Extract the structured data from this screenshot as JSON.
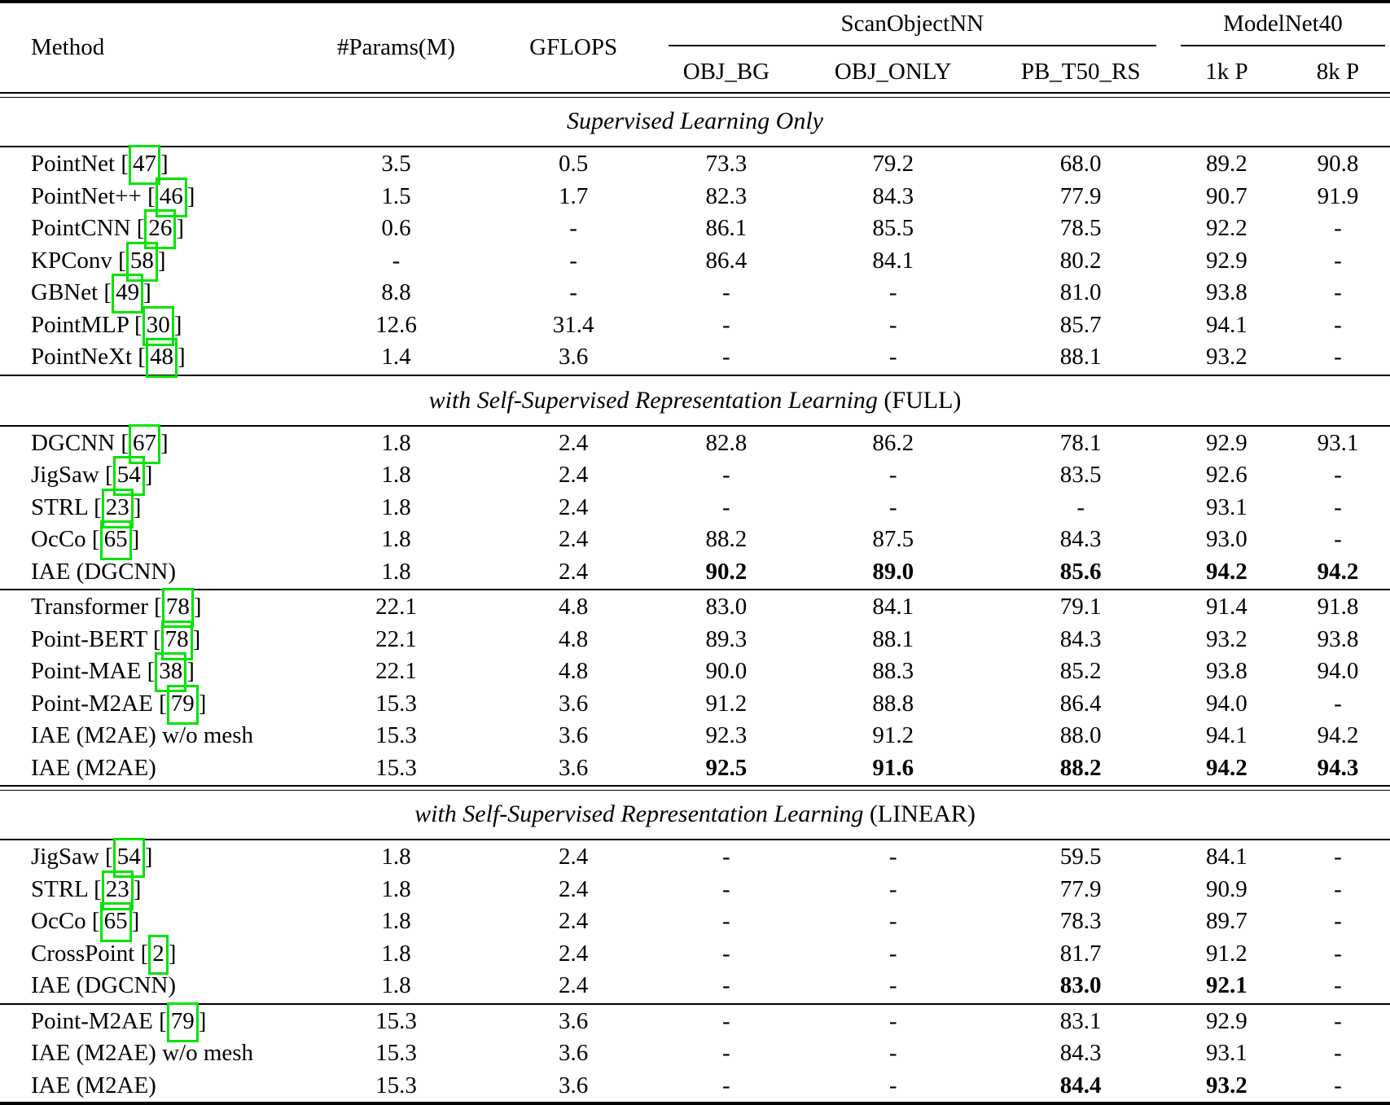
{
  "table": {
    "citation_box_color": "#00e400",
    "columns": [
      "Method",
      "#Params(M)",
      "GFLOPS",
      "OBJ_BG",
      "OBJ_ONLY",
      "PB_T50_RS",
      "1k P",
      "8k P"
    ],
    "groups": [
      {
        "label": "ScanObjectNN",
        "span": 3
      },
      {
        "label": "ModelNet40",
        "span": 2
      }
    ],
    "sections": [
      {
        "title": "Supervised Learning Only",
        "suffix": "",
        "rule_before": "double",
        "blocks": [
          {
            "rows": [
              {
                "method": "PointNet",
                "cite": "47",
                "cells": [
                  "3.5",
                  "0.5",
                  "73.3",
                  "79.2",
                  "68.0",
                  "89.2",
                  "90.8"
                ],
                "bold": []
              },
              {
                "method": "PointNet++",
                "cite": "46",
                "cells": [
                  "1.5",
                  "1.7",
                  "82.3",
                  "84.3",
                  "77.9",
                  "90.7",
                  "91.9"
                ],
                "bold": []
              },
              {
                "method": "PointCNN",
                "cite": "26",
                "cells": [
                  "0.6",
                  "-",
                  "86.1",
                  "85.5",
                  "78.5",
                  "92.2",
                  "-"
                ],
                "bold": []
              },
              {
                "method": "KPConv",
                "cite": "58",
                "cells": [
                  "-",
                  "-",
                  "86.4",
                  "84.1",
                  "80.2",
                  "92.9",
                  "-"
                ],
                "bold": []
              },
              {
                "method": "GBNet",
                "cite": "49",
                "cells": [
                  "8.8",
                  "-",
                  "-",
                  "-",
                  "81.0",
                  "93.8",
                  "-"
                ],
                "bold": []
              },
              {
                "method": "PointMLP",
                "cite": "30",
                "cells": [
                  "12.6",
                  "31.4",
                  "-",
                  "-",
                  "85.7",
                  "94.1",
                  "-"
                ],
                "bold": []
              },
              {
                "method": "PointNeXt",
                "cite": "48",
                "cells": [
                  "1.4",
                  "3.6",
                  "-",
                  "-",
                  "88.1",
                  "93.2",
                  "-"
                ],
                "bold": []
              }
            ]
          }
        ]
      },
      {
        "title": "with Self-Supervised Representation Learning",
        "suffix": " (FULL)",
        "rule_before": "single",
        "blocks": [
          {
            "rows": [
              {
                "method": "DGCNN",
                "cite": "67",
                "cells": [
                  "1.8",
                  "2.4",
                  "82.8",
                  "86.2",
                  "78.1",
                  "92.9",
                  "93.1"
                ],
                "bold": []
              },
              {
                "method": "JigSaw",
                "cite": "54",
                "cells": [
                  "1.8",
                  "2.4",
                  "-",
                  "-",
                  "83.5",
                  "92.6",
                  "-"
                ],
                "bold": []
              },
              {
                "method": "STRL",
                "cite": "23",
                "cells": [
                  "1.8",
                  "2.4",
                  "-",
                  "-",
                  "-",
                  "93.1",
                  "-"
                ],
                "bold": []
              },
              {
                "method": "OcCo",
                "cite": "65",
                "cells": [
                  "1.8",
                  "2.4",
                  "88.2",
                  "87.5",
                  "84.3",
                  "93.0",
                  "-"
                ],
                "bold": []
              },
              {
                "method": "IAE (DGCNN)",
                "cite": "",
                "cells": [
                  "1.8",
                  "2.4",
                  "90.2",
                  "89.0",
                  "85.6",
                  "94.2",
                  "94.2"
                ],
                "bold": [
                  2,
                  3,
                  4,
                  5,
                  6
                ]
              }
            ]
          },
          {
            "rows": [
              {
                "method": "Transformer",
                "cite": "78",
                "cells": [
                  "22.1",
                  "4.8",
                  "83.0",
                  "84.1",
                  "79.1",
                  "91.4",
                  "91.8"
                ],
                "bold": []
              },
              {
                "method": "Point-BERT",
                "cite": "78",
                "cells": [
                  "22.1",
                  "4.8",
                  "89.3",
                  "88.1",
                  "84.3",
                  "93.2",
                  "93.8"
                ],
                "bold": []
              },
              {
                "method": "Point-MAE",
                "cite": "38",
                "cells": [
                  "22.1",
                  "4.8",
                  "90.0",
                  "88.3",
                  "85.2",
                  "93.8",
                  "94.0"
                ],
                "bold": []
              },
              {
                "method": "Point-M2AE",
                "cite": "79",
                "cells": [
                  "15.3",
                  "3.6",
                  "91.2",
                  "88.8",
                  "86.4",
                  "94.0",
                  "-"
                ],
                "bold": []
              },
              {
                "method": "IAE (M2AE) w/o mesh",
                "cite": "",
                "cells": [
                  "15.3",
                  "3.6",
                  "92.3",
                  "91.2",
                  "88.0",
                  "94.1",
                  "94.2"
                ],
                "bold": []
              },
              {
                "method": "IAE (M2AE)",
                "cite": "",
                "cells": [
                  "15.3",
                  "3.6",
                  "92.5",
                  "91.6",
                  "88.2",
                  "94.2",
                  "94.3"
                ],
                "bold": [
                  2,
                  3,
                  4,
                  5,
                  6
                ]
              }
            ]
          }
        ]
      },
      {
        "title": "with Self-Supervised Representation Learning",
        "suffix": " (LINEAR)",
        "rule_before": "double",
        "blocks": [
          {
            "rows": [
              {
                "method": "JigSaw",
                "cite": "54",
                "cells": [
                  "1.8",
                  "2.4",
                  "-",
                  "-",
                  "59.5",
                  "84.1",
                  "-"
                ],
                "bold": []
              },
              {
                "method": "STRL",
                "cite": "23",
                "cells": [
                  "1.8",
                  "2.4",
                  "-",
                  "-",
                  "77.9",
                  "90.9",
                  "-"
                ],
                "bold": []
              },
              {
                "method": "OcCo",
                "cite": "65",
                "cells": [
                  "1.8",
                  "2.4",
                  "-",
                  "-",
                  "78.3",
                  "89.7",
                  "-"
                ],
                "bold": []
              },
              {
                "method": "CrossPoint",
                "cite": "2",
                "cells": [
                  "1.8",
                  "2.4",
                  "-",
                  "-",
                  "81.7",
                  "91.2",
                  "-"
                ],
                "bold": []
              },
              {
                "method": "IAE (DGCNN)",
                "cite": "",
                "cells": [
                  "1.8",
                  "2.4",
                  "-",
                  "-",
                  "83.0",
                  "92.1",
                  "-"
                ],
                "bold": [
                  4,
                  5
                ]
              }
            ]
          },
          {
            "rows": [
              {
                "method": "Point-M2AE",
                "cite": "79",
                "cells": [
                  "15.3",
                  "3.6",
                  "-",
                  "-",
                  "83.1",
                  "92.9",
                  "-"
                ],
                "bold": []
              },
              {
                "method": "IAE (M2AE) w/o mesh",
                "cite": "",
                "cells": [
                  "15.3",
                  "3.6",
                  "-",
                  "-",
                  "84.3",
                  "93.1",
                  "-"
                ],
                "bold": []
              },
              {
                "method": "IAE (M2AE)",
                "cite": "",
                "cells": [
                  "15.3",
                  "3.6",
                  "-",
                  "-",
                  "84.4",
                  "93.2",
                  "-"
                ],
                "bold": [
                  4,
                  5
                ]
              }
            ]
          }
        ]
      }
    ]
  }
}
